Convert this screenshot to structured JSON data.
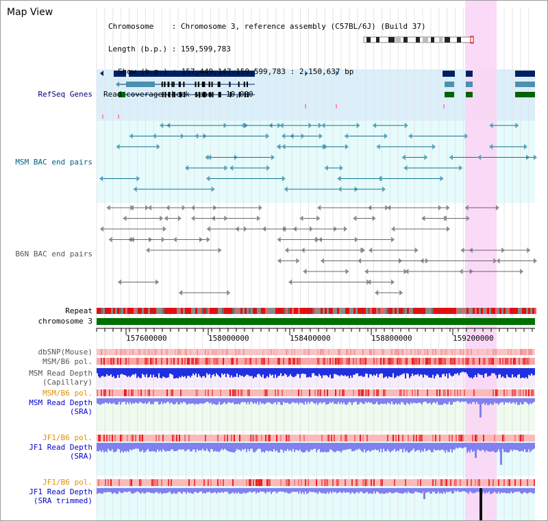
{
  "view_title": "Map View",
  "header": {
    "chromosome_label": "Chromosome    ",
    "chromosome_value": "Chromosome 3, reference assembly (C57BL/6J) (Build 37)",
    "length_label": "Length (b.p.)",
    "length_value": "159,599,783",
    "show_label": "Show (b.p.)",
    "show_value": "157,449,147-159,599,783 : 2,150,637 bp",
    "coverage_label": "Read coverage check span",
    "coverage_value": "10,000"
  },
  "tracks": {
    "refseq": "RefSeq Genes",
    "msm_bac": "MSM BAC end pairs",
    "b6n_bac": "B6N BAC end pairs",
    "repeat": "Repeat",
    "chromosome": "chromosome 3",
    "dbsnp": "dbSNP(Mouse)",
    "msm_b6_pol_1": "MSM/B6 pol.",
    "msm_read_depth_cap_1": "MSM Read Depth",
    "msm_read_depth_cap_2": "(Capillary)",
    "msm_b6_pol_2": "MSM/B6 pol.",
    "msm_read_depth_sra_1": "MSM Read Depth",
    "msm_read_depth_sra_2": "(SRA)",
    "jf1_b6_pol_1": "JF1/B6 pol.",
    "jf1_read_depth_sra_1": "JF1 Read Depth",
    "jf1_read_depth_sra_2": "(SRA)",
    "jf1_b6_pol_2": "JF1/B6 pol.",
    "jf1_read_depth_trim_1": "JF1 Read Depth",
    "jf1_read_depth_trim_2": "(SRA trimmed)"
  },
  "axis_ticks": [
    "157600000",
    "158000000",
    "158400000",
    "158800000",
    "159200000"
  ],
  "colors": {
    "refseq_bg": "#dbeffa",
    "bac_bg": "#e6fbfb",
    "highlight": "#f9d6f5",
    "gene_dark": "#002060",
    "gene_mid": "#4a90b0",
    "gene_green": "#006400",
    "msm_bac": "#107090",
    "b6n_bac": "#666666",
    "chromosome_bar": "#007000",
    "depth_blue": "#2030e0",
    "depth_light": "#8080f0"
  }
}
